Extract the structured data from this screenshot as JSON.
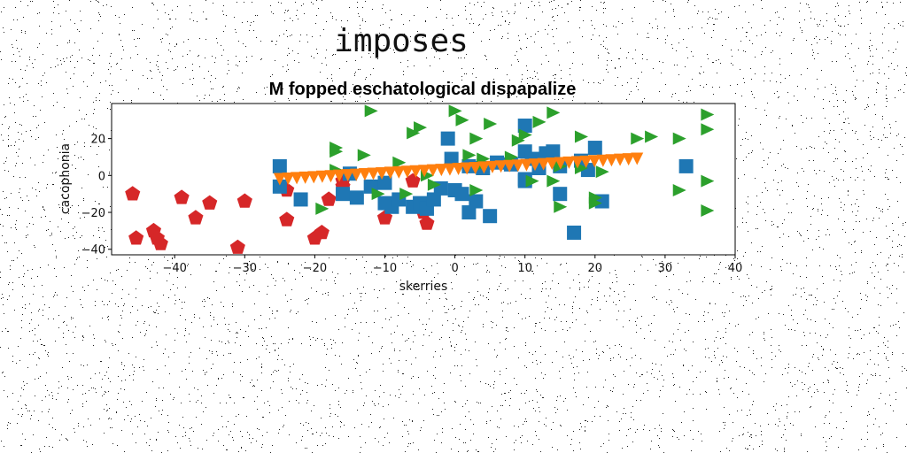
{
  "figure_title": "imposes",
  "chart_data": {
    "type": "scatter",
    "title": "M fopped eschatological dispapalize",
    "xlabel": "skerries",
    "ylabel": "cacophonia",
    "xlim": [
      -49,
      40
    ],
    "ylim": [
      -43,
      39
    ],
    "xticks": [
      -40,
      -30,
      -20,
      -10,
      0,
      10,
      20,
      30,
      40
    ],
    "yticks": [
      -40,
      -20,
      0,
      20
    ],
    "xtick_labels": [
      "−40",
      "−30",
      "−20",
      "−10",
      "0",
      "10",
      "20",
      "30",
      "40"
    ],
    "ytick_labels": [
      "−40",
      "−20",
      "0",
      "20"
    ],
    "grid": false,
    "series": [
      {
        "color": "#d62728",
        "marker": "pentagon",
        "points": [
          [
            -46,
            -10
          ],
          [
            -45.5,
            -34
          ],
          [
            -43,
            -30
          ],
          [
            -42.5,
            -34
          ],
          [
            -42,
            -37
          ],
          [
            -39,
            -12
          ],
          [
            -37,
            -23
          ],
          [
            -35,
            -15
          ],
          [
            -30,
            -14
          ],
          [
            -31,
            -39
          ],
          [
            -24,
            -24
          ],
          [
            -24,
            -8
          ],
          [
            -20,
            -34
          ],
          [
            -19,
            -31
          ],
          [
            -18,
            -13
          ],
          [
            -16,
            -3
          ],
          [
            -16,
            -6
          ],
          [
            -10,
            -23
          ],
          [
            -6,
            -3
          ],
          [
            -4.5,
            -20
          ],
          [
            -4,
            -26
          ]
        ]
      },
      {
        "color": "#1f77b4",
        "marker": "square",
        "points": [
          [
            -25,
            5
          ],
          [
            -25,
            -6
          ],
          [
            -22,
            -13
          ],
          [
            -16,
            -10
          ],
          [
            -15,
            1
          ],
          [
            -14,
            -12
          ],
          [
            -12,
            -6
          ],
          [
            -10,
            -4
          ],
          [
            -10,
            -15
          ],
          [
            -9,
            -17
          ],
          [
            -8,
            -13
          ],
          [
            -6,
            -17
          ],
          [
            -5,
            -15
          ],
          [
            -4,
            -18
          ],
          [
            -3,
            -13
          ],
          [
            -2,
            -7
          ],
          [
            -1,
            20
          ],
          [
            -0.5,
            9
          ],
          [
            0,
            -8
          ],
          [
            1,
            -10
          ],
          [
            2,
            5
          ],
          [
            2,
            -20
          ],
          [
            3,
            -14
          ],
          [
            4,
            4
          ],
          [
            5,
            -22
          ],
          [
            6,
            7
          ],
          [
            8,
            6
          ],
          [
            10,
            27
          ],
          [
            10,
            -3
          ],
          [
            10,
            -2
          ],
          [
            10,
            13
          ],
          [
            11,
            9
          ],
          [
            12,
            4
          ],
          [
            13,
            12
          ],
          [
            14,
            13
          ],
          [
            15,
            5
          ],
          [
            15,
            -10
          ],
          [
            17,
            -31
          ],
          [
            18,
            8
          ],
          [
            19,
            3
          ],
          [
            20,
            15
          ],
          [
            21,
            -14
          ],
          [
            33,
            5
          ]
        ]
      },
      {
        "color": "#2ca02c",
        "marker": "triangle-right",
        "points": [
          [
            -19,
            -18
          ],
          [
            -17,
            15
          ],
          [
            -17,
            3
          ],
          [
            -17,
            13
          ],
          [
            -13,
            11
          ],
          [
            -12,
            35
          ],
          [
            -11,
            -10
          ],
          [
            -8,
            7
          ],
          [
            -7,
            -10
          ],
          [
            -6,
            23
          ],
          [
            -5,
            26
          ],
          [
            -4,
            0
          ],
          [
            -3,
            -5
          ],
          [
            0,
            35
          ],
          [
            1,
            30
          ],
          [
            2,
            11
          ],
          [
            3,
            20
          ],
          [
            3,
            -8
          ],
          [
            4,
            9
          ],
          [
            4,
            6
          ],
          [
            5,
            28
          ],
          [
            8,
            10
          ],
          [
            9,
            19
          ],
          [
            10,
            22
          ],
          [
            11,
            -3
          ],
          [
            12,
            29
          ],
          [
            14,
            34
          ],
          [
            14,
            -3
          ],
          [
            15,
            -17
          ],
          [
            15,
            5
          ],
          [
            18,
            21
          ],
          [
            18,
            4
          ],
          [
            20,
            -15
          ],
          [
            20,
            -12
          ],
          [
            21,
            2
          ],
          [
            26,
            20
          ],
          [
            28,
            21
          ],
          [
            32,
            -8
          ],
          [
            32,
            20
          ],
          [
            36,
            33
          ],
          [
            36,
            25
          ],
          [
            36,
            -3
          ],
          [
            36,
            -19
          ]
        ]
      },
      {
        "color": "#ff7f0e",
        "marker": "triangle-down",
        "line": {
          "x0": -25,
          "x1": 26,
          "y0": -2,
          "y1": 9,
          "count": 43
        }
      }
    ]
  }
}
